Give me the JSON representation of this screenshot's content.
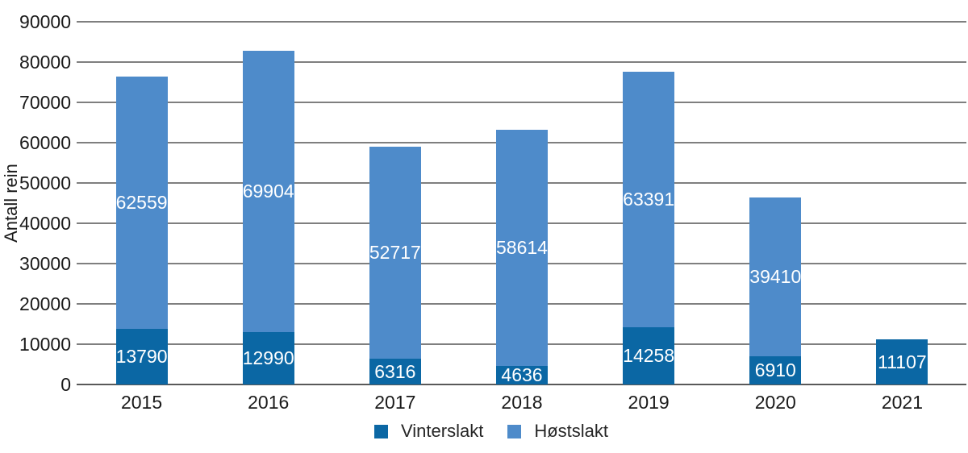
{
  "chart_data": {
    "type": "bar",
    "stacked": true,
    "title": "",
    "xlabel": "",
    "ylabel": "Antall rein",
    "categories": [
      "2015",
      "2016",
      "2017",
      "2018",
      "2019",
      "2020",
      "2021"
    ],
    "series": [
      {
        "name": "Vinterslakt",
        "color": "#0b67a4",
        "values": [
          13790,
          12990,
          6316,
          4636,
          14258,
          6910,
          11107
        ]
      },
      {
        "name": "Høstslakt",
        "color": "#4e8bca",
        "values": [
          62559,
          69904,
          52717,
          58614,
          63391,
          39410,
          null
        ]
      }
    ],
    "ylim": [
      0,
      90000
    ],
    "ytick_interval": 10000,
    "yticks": [
      0,
      10000,
      20000,
      30000,
      40000,
      50000,
      60000,
      70000,
      80000,
      90000
    ],
    "grid": "horizontal",
    "legend_position": "bottom",
    "value_labels_shown": true
  },
  "colors": {
    "gridline": "#7f7f7f",
    "axis_line": "#595959",
    "tick_label": "#1a1a1a",
    "value_label": "#ffffff",
    "background": "#ffffff"
  }
}
